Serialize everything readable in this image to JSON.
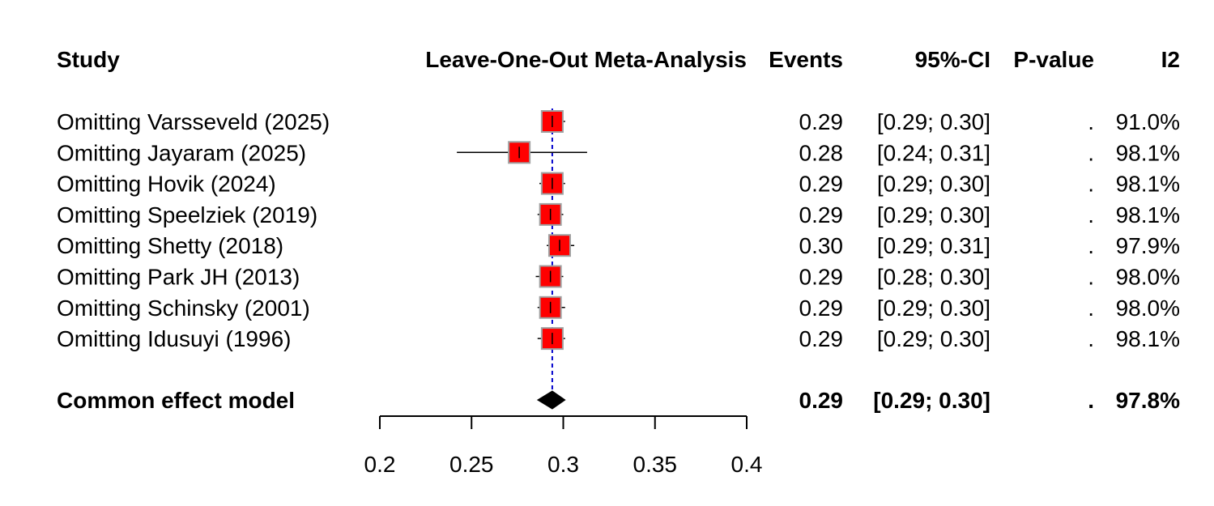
{
  "chart_data": {
    "type": "forest",
    "headers": {
      "study": "Study",
      "plot": "Leave-One-Out Meta-Analysis",
      "events": "Events",
      "ci": "95%-CI",
      "pvalue": "P-value",
      "i2": "I2"
    },
    "studies": [
      {
        "label": "Omitting Varsseveld (2025)",
        "estimate": 0.294,
        "lower": 0.288,
        "upper": 0.301,
        "events": "0.29",
        "ci": "[0.29; 0.30]",
        "pvalue": ".",
        "i2": "91.0%"
      },
      {
        "label": "Omitting Jayaram (2025)",
        "estimate": 0.276,
        "lower": 0.242,
        "upper": 0.313,
        "events": "0.28",
        "ci": "[0.24; 0.31]",
        "pvalue": ".",
        "i2": "98.1%"
      },
      {
        "label": "Omitting Hovik (2024)",
        "estimate": 0.294,
        "lower": 0.287,
        "upper": 0.301,
        "events": "0.29",
        "ci": "[0.29; 0.30]",
        "pvalue": ".",
        "i2": "98.1%"
      },
      {
        "label": "Omitting Speelziek (2019)",
        "estimate": 0.293,
        "lower": 0.286,
        "upper": 0.3,
        "events": "0.29",
        "ci": "[0.29; 0.30]",
        "pvalue": ".",
        "i2": "98.1%"
      },
      {
        "label": "Omitting Shetty (2018)",
        "estimate": 0.298,
        "lower": 0.291,
        "upper": 0.306,
        "events": "0.30",
        "ci": "[0.29; 0.31]",
        "pvalue": ".",
        "i2": "97.9%"
      },
      {
        "label": "Omitting Park JH (2013)",
        "estimate": 0.293,
        "lower": 0.285,
        "upper": 0.3,
        "events": "0.29",
        "ci": "[0.28; 0.30]",
        "pvalue": ".",
        "i2": "98.0%"
      },
      {
        "label": "Omitting Schinsky (2001)",
        "estimate": 0.293,
        "lower": 0.286,
        "upper": 0.301,
        "events": "0.29",
        "ci": "[0.29; 0.30]",
        "pvalue": ".",
        "i2": "98.0%"
      },
      {
        "label": "Omitting Idusuyi (1996)",
        "estimate": 0.294,
        "lower": 0.286,
        "upper": 0.301,
        "events": "0.29",
        "ci": "[0.29; 0.30]",
        "pvalue": ".",
        "i2": "98.1%"
      }
    ],
    "pooled": {
      "label": "Common effect model",
      "estimate": 0.294,
      "lower": 0.286,
      "upper": 0.301,
      "events": "0.29",
      "ci": "[0.29; 0.30]",
      "pvalue": ".",
      "i2": "97.8%"
    },
    "xlim": [
      0.2,
      0.4
    ],
    "xticks": [
      0.2,
      0.25,
      0.3,
      0.35,
      0.4
    ],
    "xtick_labels": [
      "0.2",
      "0.25",
      "0.3",
      "0.35",
      "0.4"
    ],
    "reference_line": 0.294,
    "colors": {
      "square": "#ff0000",
      "square_border": "#a0a0a0",
      "reference": "#0000cc",
      "diamond": "#000000"
    }
  }
}
